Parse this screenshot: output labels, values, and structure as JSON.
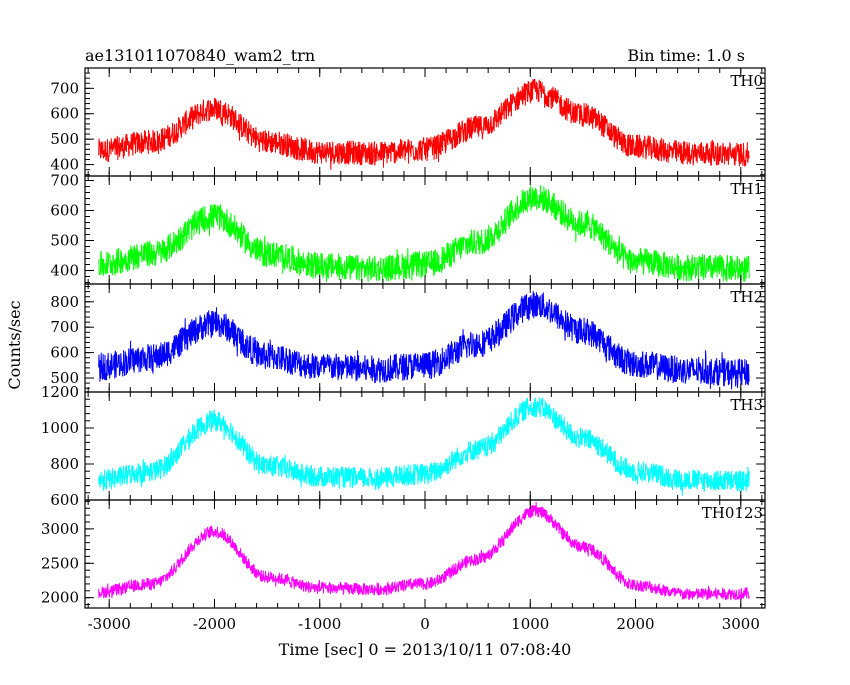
{
  "chart_data": {
    "type": "line",
    "title": "ae131011070840_wam2_trn",
    "subtitle": "Bin time: 1.0 s",
    "xlabel": "Time [sec] 0 = 2013/10/11 07:08:40",
    "ylabel": "Counts/sec",
    "xlim": [
      -3230,
      3230
    ],
    "xticks": [
      -3000,
      -2000,
      -1000,
      0,
      1000,
      2000,
      3000
    ],
    "x_range": [
      -3100,
      3080
    ],
    "grid": false,
    "legend": "none",
    "series": [
      {
        "name": "TH0",
        "color": "#ff0000",
        "ylim": [
          355,
          780
        ],
        "yticks": [
          400,
          500,
          600,
          700
        ],
        "ytick_labels": [
          "400",
          "500",
          "600",
          "700"
        ],
        "envelope": {
          "x": [
            -3100,
            -2600,
            -2000,
            -1500,
            -1000,
            -500,
            0,
            500,
            1050,
            1500,
            2000,
            2500,
            3080
          ],
          "y": [
            455,
            490,
            620,
            490,
            450,
            445,
            460,
            545,
            690,
            595,
            470,
            445,
            440
          ]
        },
        "noise_halfwidth": 48
      },
      {
        "name": "TH1",
        "color": "#00ff00",
        "ylim": [
          355,
          715
        ],
        "yticks": [
          400,
          500,
          600,
          700
        ],
        "ytick_labels": [
          "400",
          "500",
          "600",
          "700"
        ],
        "envelope": {
          "x": [
            -3100,
            -2600,
            -2000,
            -1500,
            -1000,
            -500,
            0,
            500,
            1050,
            1500,
            2000,
            2500,
            3080
          ],
          "y": [
            420,
            455,
            580,
            455,
            415,
            405,
            420,
            495,
            645,
            555,
            430,
            410,
            405
          ]
        },
        "noise_halfwidth": 45
      },
      {
        "name": "TH2",
        "color": "#0000ff",
        "ylim": [
          445,
          870
        ],
        "yticks": [
          500,
          600,
          700,
          800
        ],
        "ytick_labels": [
          "500",
          "600",
          "700",
          "800"
        ],
        "envelope": {
          "x": [
            -3100,
            -2600,
            -2000,
            -1500,
            -1000,
            -500,
            0,
            500,
            1050,
            1500,
            2000,
            2500,
            3080
          ],
          "y": [
            545,
            580,
            715,
            585,
            545,
            535,
            550,
            635,
            790,
            685,
            555,
            530,
            520
          ]
        },
        "noise_halfwidth": 55
      },
      {
        "name": "TH3",
        "color": "#00ffff",
        "ylim": [
          600,
          1200
        ],
        "yticks": [
          600,
          800,
          1000,
          1200
        ],
        "ytick_labels": [
          "600",
          "800",
          "1000",
          "1200"
        ],
        "envelope": {
          "x": [
            -3100,
            -2600,
            -2000,
            -1500,
            -1000,
            -500,
            0,
            500,
            1050,
            1500,
            2000,
            2500,
            3080
          ],
          "y": [
            710,
            760,
            1040,
            790,
            730,
            720,
            745,
            880,
            1120,
            940,
            760,
            710,
            705
          ]
        },
        "noise_halfwidth": 60
      },
      {
        "name": "TH0123",
        "color": "#ff00ff",
        "ylim": [
          1850,
          3420
        ],
        "yticks": [
          2000,
          2500,
          3000
        ],
        "ytick_labels": [
          "2000",
          "2500",
          "3000"
        ],
        "envelope": {
          "x": [
            -3100,
            -2600,
            -2000,
            -1500,
            -1000,
            -500,
            0,
            500,
            1050,
            1500,
            2000,
            2500,
            3080
          ],
          "y": [
            2080,
            2200,
            2960,
            2300,
            2140,
            2120,
            2200,
            2560,
            3260,
            2740,
            2180,
            2050,
            2060
          ]
        },
        "noise_halfwidth": 90
      }
    ]
  }
}
